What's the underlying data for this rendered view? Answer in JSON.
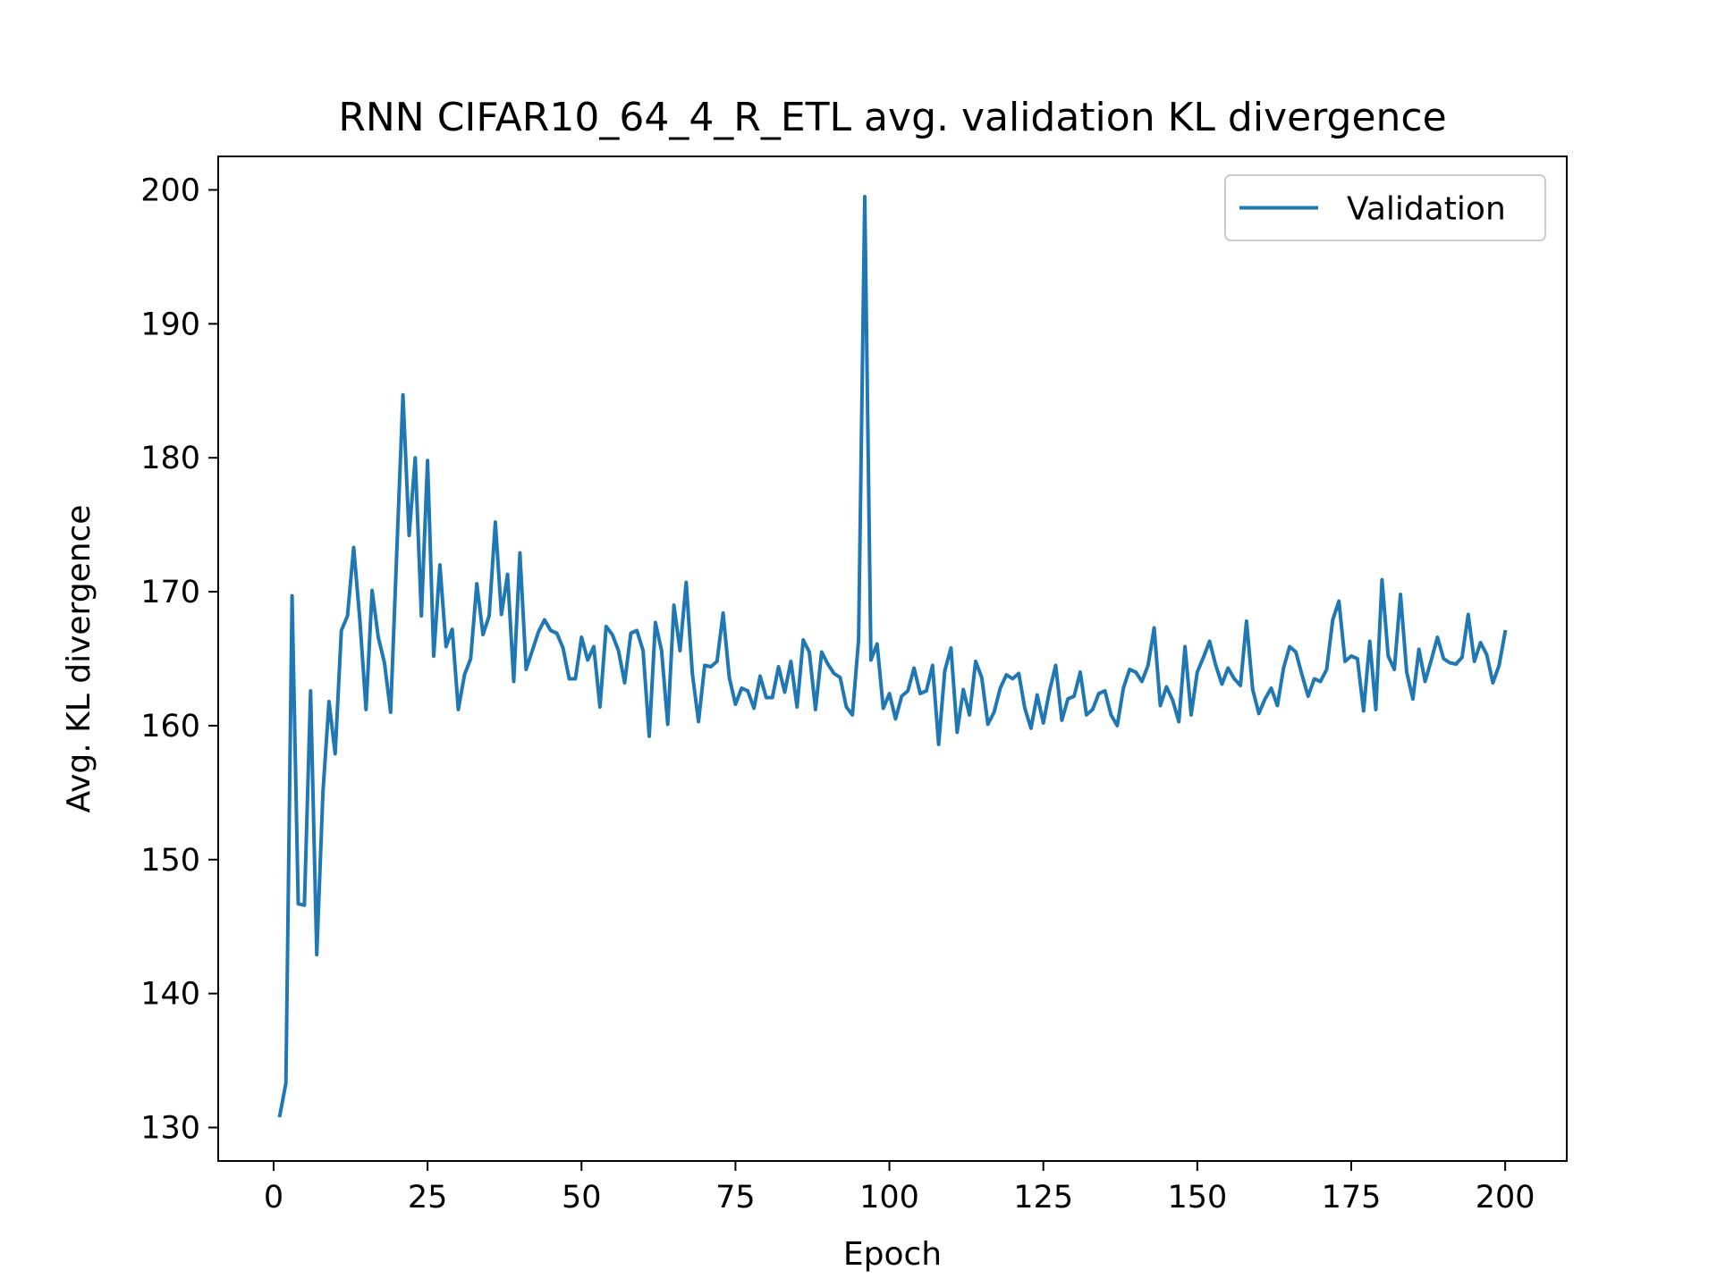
{
  "chart_data": {
    "type": "line",
    "title": "RNN CIFAR10_64_4_R_ETL avg. validation KL divergence",
    "xlabel": "Epoch",
    "ylabel": "Avg. KL divergence",
    "xlim": [
      -9,
      210
    ],
    "ylim": [
      127.5,
      202.5
    ],
    "xticks": [
      0,
      25,
      50,
      75,
      100,
      125,
      150,
      175,
      200
    ],
    "yticks": [
      130,
      140,
      150,
      160,
      170,
      180,
      190,
      200
    ],
    "grid": false,
    "legend_position": "top-right",
    "series": [
      {
        "name": "Validation",
        "color": "#1f77b4",
        "x": [
          1,
          2,
          3,
          4,
          5,
          6,
          7,
          8,
          9,
          10,
          11,
          12,
          13,
          14,
          15,
          16,
          17,
          18,
          19,
          20,
          21,
          22,
          23,
          24,
          25,
          26,
          27,
          28,
          29,
          30,
          31,
          32,
          33,
          34,
          35,
          36,
          37,
          38,
          39,
          40,
          41,
          42,
          43,
          44,
          45,
          46,
          47,
          48,
          49,
          50,
          51,
          52,
          53,
          54,
          55,
          56,
          57,
          58,
          59,
          60,
          61,
          62,
          63,
          64,
          65,
          66,
          67,
          68,
          69,
          70,
          71,
          72,
          73,
          74,
          75,
          76,
          77,
          78,
          79,
          80,
          81,
          82,
          83,
          84,
          85,
          86,
          87,
          88,
          89,
          90,
          91,
          92,
          93,
          94,
          95,
          96,
          97,
          98,
          99,
          100,
          101,
          102,
          103,
          104,
          105,
          106,
          107,
          108,
          109,
          110,
          111,
          112,
          113,
          114,
          115,
          116,
          117,
          118,
          119,
          120,
          121,
          122,
          123,
          124,
          125,
          126,
          127,
          128,
          129,
          130,
          131,
          132,
          133,
          134,
          135,
          136,
          137,
          138,
          139,
          140,
          141,
          142,
          143,
          144,
          145,
          146,
          147,
          148,
          149,
          150,
          151,
          152,
          153,
          154,
          155,
          156,
          157,
          158,
          159,
          160,
          161,
          162,
          163,
          164,
          165,
          166,
          167,
          168,
          169,
          170,
          171,
          172,
          173,
          174,
          175,
          176,
          177,
          178,
          179,
          180,
          181,
          182,
          183,
          184,
          185,
          186,
          187,
          188,
          189,
          190,
          191,
          192,
          193,
          194,
          195,
          196,
          197,
          198,
          199,
          200
        ],
        "y": [
          130.9,
          133.3,
          169.7,
          146.7,
          146.6,
          162.6,
          142.9,
          155.0,
          161.8,
          157.9,
          167.1,
          168.2,
          173.3,
          167.9,
          161.2,
          170.1,
          166.6,
          164.7,
          161.0,
          173.0,
          184.7,
          174.2,
          180.0,
          168.2,
          179.8,
          165.2,
          172.0,
          165.9,
          167.2,
          161.2,
          163.8,
          165.0,
          170.6,
          166.8,
          168.2,
          175.2,
          168.3,
          171.3,
          163.3,
          172.9,
          164.2,
          165.6,
          167.0,
          167.9,
          167.1,
          166.9,
          165.8,
          163.5,
          163.5,
          166.6,
          164.9,
          165.9,
          161.4,
          167.4,
          166.8,
          165.6,
          163.2,
          166.9,
          167.1,
          165.6,
          159.2,
          167.7,
          165.6,
          160.1,
          169.0,
          165.6,
          170.7,
          163.9,
          160.3,
          164.5,
          164.4,
          164.8,
          168.4,
          163.6,
          161.6,
          162.8,
          162.6,
          161.3,
          163.7,
          162.1,
          162.1,
          164.4,
          162.5,
          164.8,
          161.4,
          166.4,
          165.5,
          161.2,
          165.5,
          164.6,
          163.9,
          163.6,
          161.4,
          160.8,
          166.4,
          199.5,
          164.9,
          166.1,
          161.3,
          162.4,
          160.5,
          162.2,
          162.6,
          164.3,
          162.4,
          162.6,
          164.5,
          158.6,
          164.1,
          165.8,
          159.5,
          162.7,
          160.8,
          164.8,
          163.6,
          160.1,
          161.0,
          162.8,
          163.8,
          163.5,
          163.9,
          161.3,
          159.8,
          162.3,
          160.2,
          162.6,
          164.5,
          160.4,
          162.0,
          162.2,
          164.0,
          160.8,
          161.2,
          162.4,
          162.6,
          160.8,
          160.0,
          162.8,
          164.2,
          164.0,
          163.3,
          164.5,
          167.3,
          161.5,
          162.9,
          161.9,
          160.3,
          165.9,
          160.8,
          164.0,
          165.1,
          166.3,
          164.5,
          163.1,
          164.3,
          163.5,
          163.0,
          167.8,
          162.7,
          160.9,
          162.0,
          162.8,
          161.5,
          164.3,
          165.9,
          165.5,
          163.8,
          162.2,
          163.5,
          163.3,
          164.2,
          167.9,
          169.3,
          164.8,
          165.2,
          165.0,
          161.1,
          166.3,
          161.2,
          170.9,
          165.2,
          164.2,
          169.8,
          164.0,
          162.0,
          165.7,
          163.3,
          164.9,
          166.6,
          165.0,
          164.7,
          164.6,
          165.1,
          168.3,
          164.8,
          166.2,
          165.3,
          163.2,
          164.5,
          167.0
        ]
      }
    ]
  }
}
